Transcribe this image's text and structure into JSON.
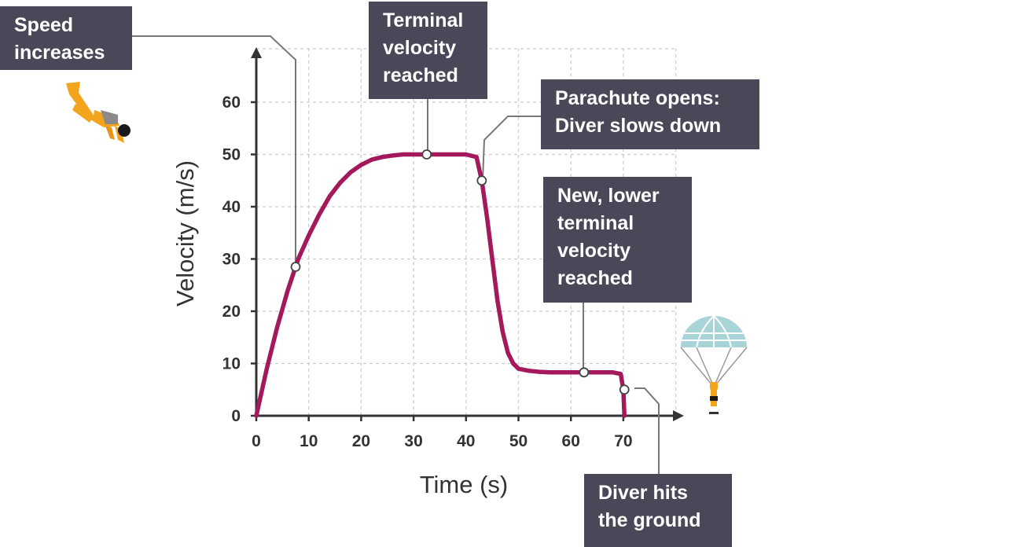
{
  "chart_data": {
    "type": "line",
    "xlabel": "Time (s)",
    "ylabel": "Velocity (m/s)",
    "xlim": [
      0,
      80
    ],
    "ylim": [
      0,
      68
    ],
    "xticks": [
      0,
      10,
      20,
      30,
      40,
      50,
      60,
      70
    ],
    "yticks": [
      0,
      10,
      20,
      30,
      40,
      50,
      60
    ],
    "grid": true,
    "series": [
      {
        "color": "#a3195b",
        "x": [
          0,
          2,
          4,
          6,
          8,
          10,
          12,
          14,
          16,
          18,
          20,
          22,
          24,
          26,
          28,
          30,
          32,
          34,
          36,
          38,
          40,
          42,
          43,
          44,
          45,
          46,
          47,
          48,
          49,
          50,
          52,
          54,
          56,
          58,
          60,
          62,
          64,
          66,
          68,
          69.5,
          70,
          70.2
        ],
        "y": [
          0,
          9,
          17,
          24,
          30,
          34.5,
          38.5,
          42,
          44.6,
          46.6,
          48,
          49,
          49.5,
          49.8,
          50,
          50,
          50,
          50,
          50,
          50,
          50,
          49.5,
          45,
          38,
          30,
          22,
          16,
          12,
          10,
          9,
          8.6,
          8.4,
          8.3,
          8.3,
          8.3,
          8.3,
          8.3,
          8.3,
          8.3,
          8.0,
          5,
          0
        ]
      }
    ],
    "markers": [
      {
        "x": 7.5,
        "y": 28.5
      },
      {
        "x": 32.5,
        "y": 50
      },
      {
        "x": 43,
        "y": 45
      },
      {
        "x": 62.5,
        "y": 8.3
      },
      {
        "x": 70.2,
        "y": 5
      }
    ],
    "annotations": [
      {
        "lines": [
          "Speed",
          "increases"
        ]
      },
      {
        "lines": [
          "Terminal",
          "velocity",
          "reached"
        ]
      },
      {
        "lines": [
          "Parachute opens:",
          "Diver slows down"
        ]
      },
      {
        "lines": [
          "New, lower",
          "terminal",
          "velocity",
          "reached"
        ]
      },
      {
        "lines": [
          "Diver hits",
          "the ground"
        ]
      }
    ],
    "colors": {
      "line": "#a3195b",
      "annotation_box": "#4a4858",
      "leader": "#777777",
      "axis": "#333333",
      "grid": "#cccccc"
    },
    "icons": [
      "skydiver-icon",
      "parachute-icon"
    ]
  }
}
